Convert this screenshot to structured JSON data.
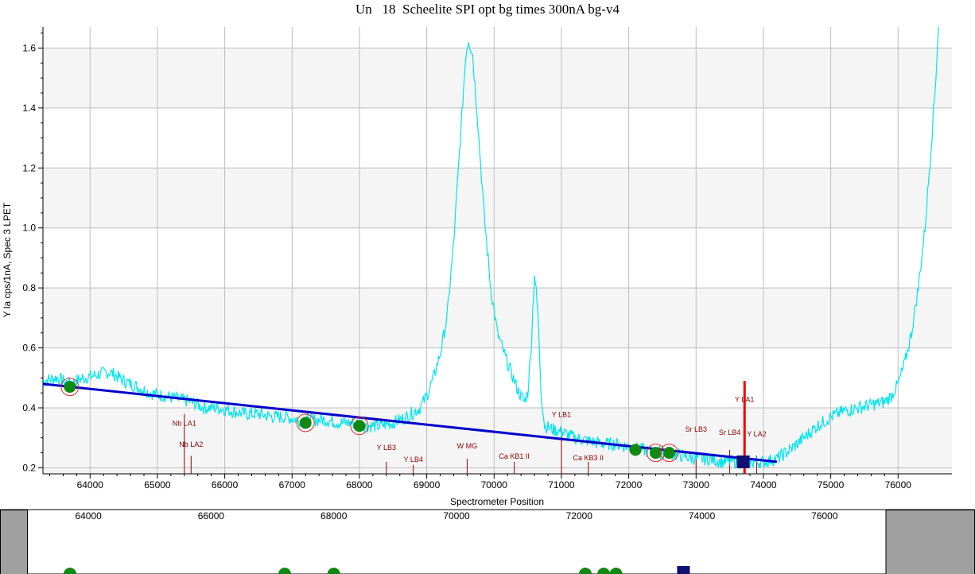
{
  "title": "Un   18  Scheelite SPI opt bg times 300nA bg-v4",
  "chart_data": {
    "type": "line",
    "title": "Un   18  Scheelite SPI opt bg times 300nA bg-v4",
    "xlabel": "Spectrometer Position",
    "ylabel": "Y la cps/1nA, Spec  3 LPET",
    "xlim": [
      63300,
      76800
    ],
    "ylim": [
      0.18,
      1.67
    ],
    "xticks": [
      64000,
      65000,
      66000,
      67000,
      68000,
      69000,
      70000,
      71000,
      72000,
      73000,
      74000,
      75000,
      76000
    ],
    "yticks": [
      0.2,
      0.4,
      0.6,
      0.8,
      1.0,
      1.2,
      1.4,
      1.6
    ],
    "grid": true,
    "spectrum": {
      "name": "",
      "color": "#00e5ee",
      "points": [
        [
          63300,
          0.49
        ],
        [
          63500,
          0.5
        ],
        [
          63700,
          0.48
        ],
        [
          63900,
          0.5
        ],
        [
          64100,
          0.51
        ],
        [
          64300,
          0.52
        ],
        [
          64500,
          0.49
        ],
        [
          64700,
          0.47
        ],
        [
          64900,
          0.45
        ],
        [
          65100,
          0.44
        ],
        [
          65300,
          0.43
        ],
        [
          65500,
          0.42
        ],
        [
          65700,
          0.4
        ],
        [
          65900,
          0.4
        ],
        [
          66100,
          0.39
        ],
        [
          66300,
          0.38
        ],
        [
          66500,
          0.38
        ],
        [
          66700,
          0.37
        ],
        [
          66900,
          0.37
        ],
        [
          67100,
          0.36
        ],
        [
          67300,
          0.36
        ],
        [
          67500,
          0.36
        ],
        [
          67700,
          0.35
        ],
        [
          67900,
          0.35
        ],
        [
          68100,
          0.34
        ],
        [
          68300,
          0.34
        ],
        [
          68500,
          0.35
        ],
        [
          68700,
          0.37
        ],
        [
          68900,
          0.4
        ],
        [
          69000,
          0.44
        ],
        [
          69100,
          0.5
        ],
        [
          69200,
          0.58
        ],
        [
          69300,
          0.7
        ],
        [
          69400,
          0.95
        ],
        [
          69500,
          1.3
        ],
        [
          69580,
          1.58
        ],
        [
          69620,
          1.63
        ],
        [
          69680,
          1.58
        ],
        [
          69750,
          1.38
        ],
        [
          69850,
          1.05
        ],
        [
          69950,
          0.8
        ],
        [
          70050,
          0.65
        ],
        [
          70150,
          0.58
        ],
        [
          70250,
          0.52
        ],
        [
          70350,
          0.46
        ],
        [
          70450,
          0.42
        ],
        [
          70500,
          0.45
        ],
        [
          70550,
          0.6
        ],
        [
          70600,
          0.85
        ],
        [
          70650,
          0.72
        ],
        [
          70700,
          0.45
        ],
        [
          70750,
          0.34
        ],
        [
          70850,
          0.33
        ],
        [
          71000,
          0.32
        ],
        [
          71200,
          0.3
        ],
        [
          71400,
          0.29
        ],
        [
          71600,
          0.28
        ],
        [
          71800,
          0.28
        ],
        [
          72000,
          0.27
        ],
        [
          72200,
          0.26
        ],
        [
          72400,
          0.25
        ],
        [
          72600,
          0.25
        ],
        [
          72800,
          0.24
        ],
        [
          73000,
          0.23
        ],
        [
          73200,
          0.23
        ],
        [
          73400,
          0.22
        ],
        [
          73600,
          0.22
        ],
        [
          73800,
          0.22
        ],
        [
          74000,
          0.22
        ],
        [
          74200,
          0.23
        ],
        [
          74400,
          0.26
        ],
        [
          74600,
          0.3
        ],
        [
          74800,
          0.34
        ],
        [
          75000,
          0.37
        ],
        [
          75200,
          0.39
        ],
        [
          75400,
          0.4
        ],
        [
          75600,
          0.41
        ],
        [
          75800,
          0.42
        ],
        [
          75900,
          0.44
        ],
        [
          76000,
          0.48
        ],
        [
          76100,
          0.55
        ],
        [
          76200,
          0.65
        ],
        [
          76300,
          0.8
        ],
        [
          76400,
          1.0
        ],
        [
          76500,
          1.3
        ],
        [
          76560,
          1.5
        ],
        [
          76600,
          1.67
        ]
      ]
    },
    "background_fit": {
      "color": "#0000cc",
      "x": [
        63300,
        74200
      ],
      "y": [
        0.48,
        0.22
      ]
    },
    "background_points": [
      {
        "x": 63700,
        "y": 0.47,
        "circled": true
      },
      {
        "x": 67200,
        "y": 0.35,
        "circled": true
      },
      {
        "x": 68000,
        "y": 0.34,
        "circled": true
      },
      {
        "x": 72100,
        "y": 0.26,
        "circled": false
      },
      {
        "x": 72400,
        "y": 0.25,
        "circled": true
      },
      {
        "x": 72600,
        "y": 0.25,
        "circled": true
      }
    ],
    "peak_position": {
      "x": 73700,
      "y": 0.22
    },
    "peak_line": {
      "x": 73720,
      "y_top": 0.49,
      "color": "#ee0000"
    },
    "markers": [
      {
        "label": "Nb LA1",
        "x": 65400,
        "y_label": 0.34,
        "y_top": 0.38
      },
      {
        "label": "Nb LA2",
        "x": 65500,
        "y_label": 0.27,
        "y_top": 0.24
      },
      {
        "label": "Y LB3",
        "x": 68400,
        "y_label": 0.26,
        "y_top": 0.22
      },
      {
        "label": "Y LB4",
        "x": 68800,
        "y_label": 0.22,
        "y_top": 0.21
      },
      {
        "label": "W MG",
        "x": 69600,
        "y_label": 0.265,
        "y_top": 0.23
      },
      {
        "label": "Ca KB1 II",
        "x": 70300,
        "y_label": 0.23,
        "y_top": 0.22
      },
      {
        "label": "Y LB1",
        "x": 71000,
        "y_label": 0.37,
        "y_top": 0.33
      },
      {
        "label": "Ca KB3 II",
        "x": 71400,
        "y_label": 0.225,
        "y_top": 0.22
      },
      {
        "label": "Sr LB3",
        "x": 73000,
        "y_label": 0.32,
        "y_top": 0.25
      },
      {
        "label": "Sr LB4",
        "x": 73500,
        "y_label": 0.31,
        "y_top": 0.26
      },
      {
        "label": "Y LA1",
        "x": 73720,
        "y_label": 0.42,
        "y_top": 0.39
      },
      {
        "label": "Y LA2",
        "x": 73900,
        "y_label": 0.305,
        "y_top": 0.24
      }
    ],
    "overview": {
      "xticks": [
        64000,
        66000,
        68000,
        70000,
        72000,
        74000,
        76000
      ],
      "xlim": [
        63000,
        77000
      ],
      "points": [
        63700,
        67200,
        68000,
        72100,
        72400,
        72600
      ],
      "peak": 73700
    }
  }
}
